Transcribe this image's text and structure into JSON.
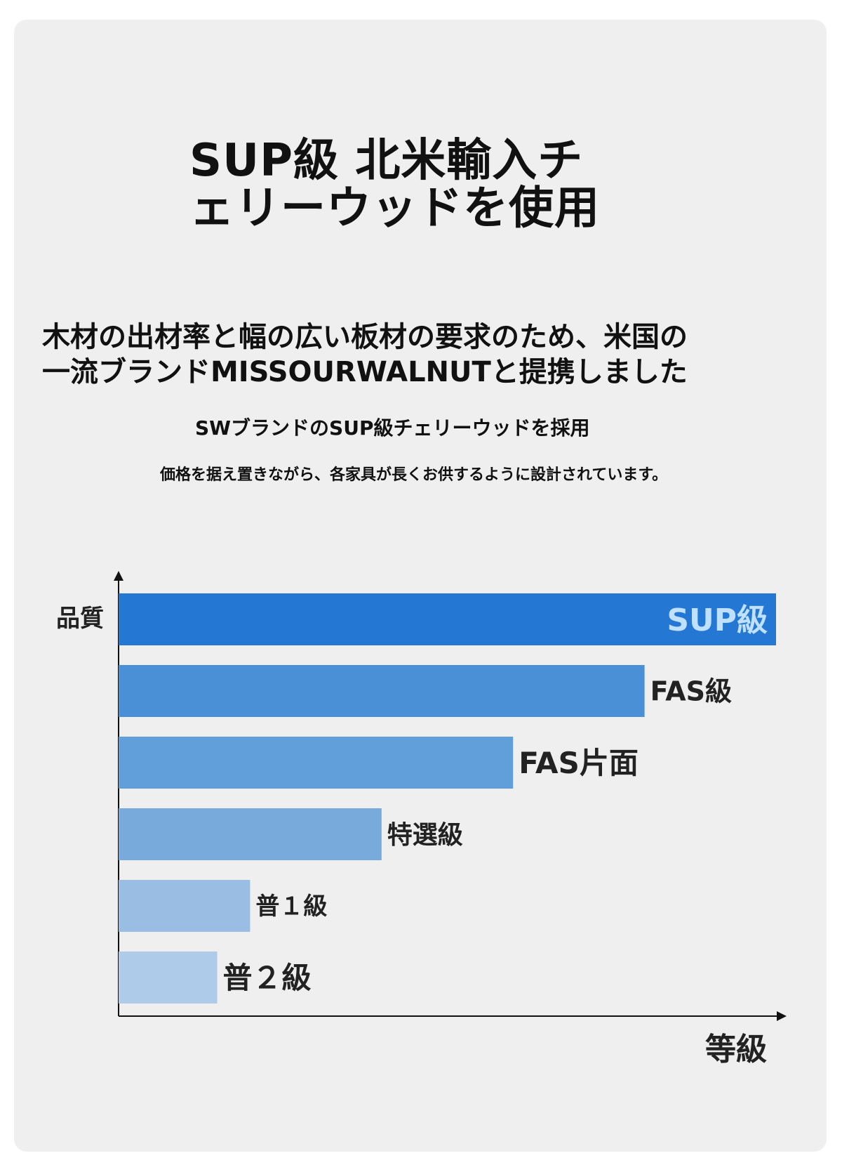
{
  "title": [
    "SUP級 北米輸入チ",
    "ェリーウッドを使用"
  ],
  "subtitle": [
    "木材の出材率と幅の広い板材の要求のため、米国の",
    "一流ブランドMISSOURWALNUTと提携しました"
  ],
  "tagline": "SWブランドのSUP級チェリーウッドを採用",
  "description": "価格を据え置きながら、各家具が長くお供するように設計されています。",
  "chart_data": {
    "type": "bar",
    "orientation": "horizontal",
    "ylabel": "品質",
    "xlabel": "等級",
    "categories": [
      "SUP級",
      "FAS級",
      "FAS片面",
      "特選級",
      "普１級",
      "普２級"
    ],
    "values": [
      100,
      80,
      60,
      40,
      20,
      15
    ],
    "xlim": [
      0,
      100
    ],
    "colors": [
      "#2477d2",
      "#4a90d6",
      "#619fdb",
      "#78aadc",
      "#9abde4",
      "#aecbea"
    ],
    "label_colors": [
      "#bfe0ff",
      "#222222",
      "#222222",
      "#222222",
      "#222222",
      "#222222"
    ],
    "label_inside": [
      true,
      false,
      false,
      false,
      false,
      false
    ],
    "grid": false
  }
}
